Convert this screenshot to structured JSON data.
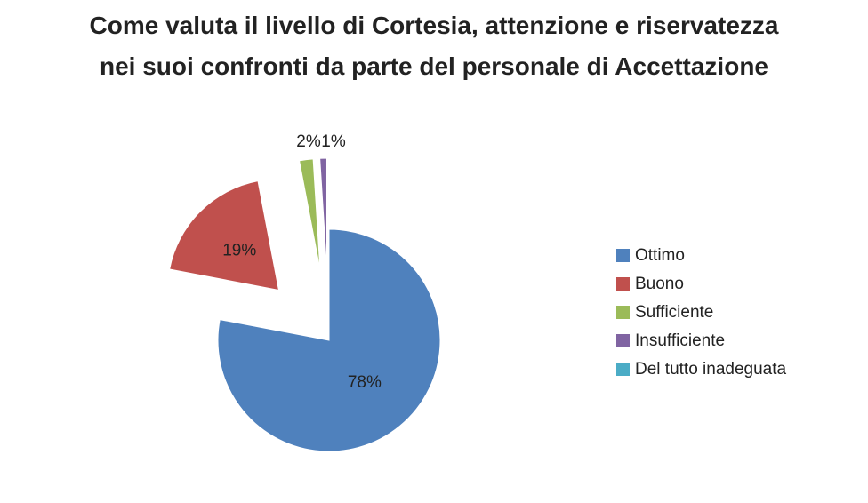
{
  "chart_data": {
    "type": "pie",
    "title": "Come valuta il livello di Cortesia, attenzione e riservatezza nei suoi confronti da parte del personale di Accettazione",
    "categories": [
      "Ottimo",
      "Buono",
      "Sufficiente",
      "Insufficiente",
      "Del tutto inadeguata"
    ],
    "values": [
      78,
      19,
      2,
      1,
      0
    ],
    "value_labels": [
      "78%",
      "19%",
      "2%",
      "1%",
      null
    ],
    "colors": [
      "#4f81bd",
      "#c0504d",
      "#9bbb59",
      "#8064a2",
      "#4bacc6"
    ],
    "legend": "right"
  }
}
